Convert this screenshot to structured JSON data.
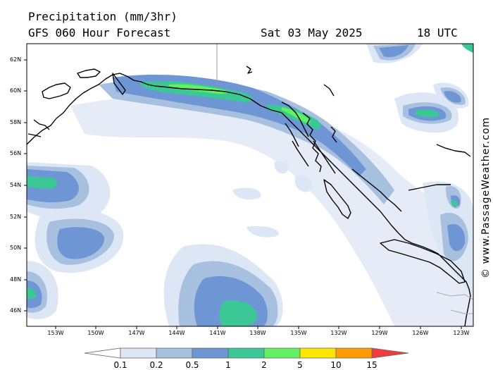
{
  "header": {
    "title": "Precipitation (mm/3hr)",
    "model": "GFS 060 Hour Forecast",
    "date": "Sat 03 May 2025",
    "time": "18 UTC"
  },
  "credit": "© www.PassageWeather.com",
  "lat_ticks": [
    "62N",
    "60N",
    "58N",
    "56N",
    "54N",
    "52N",
    "50N",
    "48N",
    "46N"
  ],
  "lon_ticks": [
    "153W",
    "150W",
    "147W",
    "144W",
    "141W",
    "138W",
    "135W",
    "132W",
    "129W",
    "126W",
    "123W"
  ],
  "legend": {
    "levels": [
      "0.1",
      "0.2",
      "0.5",
      "1",
      "2",
      "5",
      "10",
      "15"
    ],
    "colors": [
      "#ffffff",
      "#dce6f4",
      "#a8c0e0",
      "#6e96d4",
      "#3cc896",
      "#64f064",
      "#ffe600",
      "#ff9a00",
      "#f03c3c"
    ]
  }
}
